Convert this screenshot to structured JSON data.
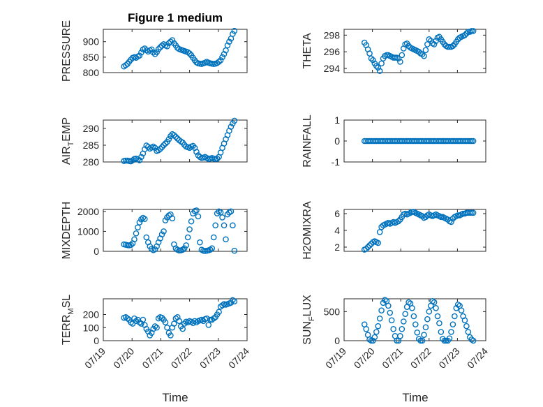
{
  "figure": {
    "title": "Figure 1 medium"
  },
  "colors": {
    "series": "#0072bd",
    "frame": "#262626",
    "grid": "#d9d9d9"
  },
  "chart_data": [
    {
      "type": "scatter",
      "ylabel": "PRESSURE",
      "ylabel_sub": "",
      "ylabel_tail": "",
      "ylim": [
        800,
        940
      ],
      "yticks": [
        800,
        850,
        900
      ],
      "x": [
        0.72,
        0.78,
        0.84,
        0.9,
        0.96,
        1.02,
        1.08,
        1.14,
        1.2,
        1.26,
        1.32,
        1.38,
        1.44,
        1.5,
        1.56,
        1.62,
        1.68,
        1.74,
        1.8,
        1.86,
        1.92,
        1.98,
        2.04,
        2.1,
        2.16,
        2.22,
        2.28,
        2.34,
        2.4,
        2.46,
        2.52,
        2.58,
        2.64,
        2.7,
        2.76,
        2.82,
        2.88,
        2.94,
        3.0,
        3.06,
        3.12,
        3.18,
        3.24,
        3.3,
        3.36,
        3.42,
        3.48,
        3.54,
        3.6,
        3.66,
        3.72,
        3.78,
        3.84,
        3.9,
        3.96,
        4.02,
        4.08,
        4.14,
        4.2,
        4.26,
        4.32,
        4.38,
        4.44,
        4.5,
        4.56
      ],
      "y": [
        820,
        824,
        828,
        835,
        842,
        848,
        850,
        848,
        852,
        855,
        865,
        875,
        878,
        872,
        868,
        872,
        875,
        865,
        860,
        866,
        876,
        882,
        887,
        892,
        888,
        885,
        895,
        900,
        905,
        895,
        888,
        880,
        876,
        874,
        872,
        870,
        868,
        866,
        862,
        856,
        848,
        840,
        833,
        830,
        829,
        828,
        830,
        832,
        835,
        832,
        830,
        829,
        828,
        829,
        831,
        835,
        840,
        850,
        860,
        872,
        888,
        900,
        910,
        925,
        935
      ],
      "markers": true
    },
    {
      "type": "scatter",
      "ylabel": "THETA",
      "ylabel_sub": "",
      "ylabel_tail": "",
      "ylim": [
        293.5,
        298.7
      ],
      "yticks": [
        294,
        296,
        298
      ],
      "x": [
        0.72,
        0.78,
        0.84,
        0.9,
        0.96,
        1.02,
        1.08,
        1.14,
        1.2,
        1.26,
        1.32,
        1.38,
        1.44,
        1.5,
        1.56,
        1.62,
        1.68,
        1.74,
        1.8,
        1.86,
        1.92,
        1.98,
        2.04,
        2.1,
        2.16,
        2.22,
        2.28,
        2.34,
        2.4,
        2.46,
        2.52,
        2.58,
        2.64,
        2.7,
        2.76,
        2.82,
        2.88,
        2.94,
        3.0,
        3.06,
        3.12,
        3.18,
        3.24,
        3.3,
        3.36,
        3.42,
        3.48,
        3.54,
        3.6,
        3.66,
        3.72,
        3.78,
        3.84,
        3.9,
        3.96,
        4.02,
        4.08,
        4.14,
        4.2,
        4.26,
        4.32,
        4.38,
        4.44,
        4.5,
        4.56
      ],
      "y": [
        297.1,
        296.8,
        296.3,
        295.8,
        295.2,
        295.0,
        294.6,
        294.3,
        294.1,
        293.7,
        294.6,
        295.2,
        295.5,
        295.6,
        295.6,
        295.5,
        295.4,
        295.3,
        295.3,
        295.3,
        295.2,
        294.8,
        295.6,
        296.4,
        296.9,
        297.0,
        296.7,
        296.5,
        296.4,
        296.3,
        296.2,
        296.1,
        296.0,
        295.8,
        295.7,
        295.5,
        296.2,
        296.9,
        297.5,
        297.3,
        297.0,
        296.9,
        297.3,
        297.7,
        297.8,
        297.5,
        297.2,
        296.9,
        296.7,
        296.6,
        296.6,
        296.6,
        296.7,
        296.9,
        297.2,
        297.5,
        297.7,
        297.8,
        297.9,
        298.0,
        298.2,
        298.4,
        298.4,
        298.5,
        298.5
      ],
      "markers": true
    },
    {
      "type": "scatter",
      "ylabel": "AIR",
      "ylabel_sub": "T",
      "ylabel_tail": "EMP",
      "ylim": [
        280,
        292.5
      ],
      "yticks": [
        280,
        285,
        290
      ],
      "x": [
        0.72,
        0.78,
        0.84,
        0.9,
        0.96,
        1.02,
        1.08,
        1.14,
        1.2,
        1.26,
        1.32,
        1.38,
        1.44,
        1.5,
        1.56,
        1.62,
        1.68,
        1.74,
        1.8,
        1.86,
        1.92,
        1.98,
        2.04,
        2.1,
        2.16,
        2.22,
        2.28,
        2.34,
        2.4,
        2.46,
        2.52,
        2.58,
        2.64,
        2.7,
        2.76,
        2.82,
        2.88,
        2.94,
        3.0,
        3.06,
        3.12,
        3.18,
        3.24,
        3.3,
        3.36,
        3.42,
        3.48,
        3.54,
        3.6,
        3.66,
        3.72,
        3.78,
        3.84,
        3.9,
        3.96,
        4.02,
        4.08,
        4.14,
        4.2,
        4.26,
        4.32,
        4.38,
        4.44,
        4.5,
        4.56
      ],
      "y": [
        280.3,
        280.4,
        280.4,
        280.3,
        280.2,
        280.5,
        280.9,
        281.0,
        280.8,
        280.5,
        281.5,
        282.5,
        283.8,
        284.9,
        284.5,
        284.0,
        284.3,
        284.6,
        284.2,
        283.3,
        283.5,
        283.9,
        284.4,
        285.0,
        285.5,
        286.0,
        286.8,
        287.7,
        288.3,
        288.0,
        287.5,
        287.0,
        286.5,
        286.1,
        285.8,
        285.1,
        284.6,
        284.4,
        284.2,
        284.6,
        284.8,
        284.2,
        283.0,
        282.0,
        281.5,
        281.2,
        281.3,
        281.5,
        281.2,
        280.9,
        281.0,
        281.2,
        281.0,
        280.9,
        281.0,
        281.5,
        282.8,
        284.2,
        285.5,
        286.8,
        288.0,
        289.3,
        290.5,
        291.5,
        292.3
      ],
      "markers": true
    },
    {
      "type": "scatter",
      "ylabel": "RAINFALL",
      "ylabel_sub": "",
      "ylabel_tail": "",
      "ylim": [
        -1,
        1
      ],
      "yticks": [
        -1,
        0,
        1
      ],
      "x": [
        0.72,
        0.78,
        0.84,
        0.9,
        0.96,
        1.02,
        1.08,
        1.14,
        1.2,
        1.26,
        1.32,
        1.38,
        1.44,
        1.5,
        1.56,
        1.62,
        1.68,
        1.74,
        1.8,
        1.86,
        1.92,
        1.98,
        2.04,
        2.1,
        2.16,
        2.22,
        2.28,
        2.34,
        2.4,
        2.46,
        2.52,
        2.58,
        2.64,
        2.7,
        2.76,
        2.82,
        2.88,
        2.94,
        3.0,
        3.06,
        3.12,
        3.18,
        3.24,
        3.3,
        3.36,
        3.42,
        3.48,
        3.54,
        3.6,
        3.66,
        3.72,
        3.78,
        3.84,
        3.9,
        3.96,
        4.02,
        4.08,
        4.14,
        4.2,
        4.26,
        4.32,
        4.38,
        4.44,
        4.5,
        4.56
      ],
      "y": [
        0,
        0,
        0,
        0,
        0,
        0,
        0,
        0,
        0,
        0,
        0,
        0,
        0,
        0,
        0,
        0,
        0,
        0,
        0,
        0,
        0,
        0,
        0,
        0,
        0,
        0,
        0,
        0,
        0,
        0,
        0,
        0,
        0,
        0,
        0,
        0,
        0,
        0,
        0,
        0,
        0,
        0,
        0,
        0,
        0,
        0,
        0,
        0,
        0,
        0,
        0,
        0,
        0,
        0,
        0,
        0,
        0,
        0,
        0,
        0,
        0,
        0,
        0,
        0,
        0
      ],
      "markers": true
    },
    {
      "type": "scatter",
      "ylabel": "MIXDEPTH",
      "ylabel_sub": "",
      "ylabel_tail": "",
      "ylim": [
        0,
        2100
      ],
      "yticks": [
        0,
        1000,
        2000
      ],
      "x": [
        0.72,
        0.78,
        0.84,
        0.9,
        0.96,
        1.02,
        1.08,
        1.14,
        1.2,
        1.26,
        1.32,
        1.38,
        1.44,
        1.5,
        1.56,
        1.62,
        1.68,
        1.74,
        1.8,
        1.86,
        1.92,
        1.98,
        2.04,
        2.1,
        2.16,
        2.22,
        2.28,
        2.34,
        2.4,
        2.46,
        2.52,
        2.58,
        2.64,
        2.7,
        2.76,
        2.82,
        2.88,
        2.94,
        3.0,
        3.06,
        3.12,
        3.18,
        3.24,
        3.3,
        3.36,
        3.42,
        3.48,
        3.54,
        3.6,
        3.66,
        3.72,
        3.78,
        3.84,
        3.9,
        3.96,
        4.02,
        4.08,
        4.14,
        4.2,
        4.26,
        4.32,
        4.38,
        4.44,
        4.5,
        4.56
      ],
      "y": [
        350,
        330,
        310,
        300,
        320,
        400,
        600,
        900,
        1200,
        1450,
        1600,
        1680,
        1620,
        700,
        450,
        250,
        120,
        60,
        100,
        250,
        450,
        650,
        850,
        1000,
        1550,
        1700,
        1800,
        1850,
        1650,
        350,
        150,
        80,
        40,
        50,
        80,
        150,
        300,
        700,
        1100,
        1500,
        1900,
        2020,
        2050,
        1750,
        450,
        80,
        30,
        20,
        30,
        50,
        80,
        150,
        700,
        1300,
        1900,
        2000,
        1950,
        1700,
        1300,
        600,
        1850,
        1950,
        2000,
        1300,
        30
      ],
      "markers": true
    },
    {
      "type": "scatter",
      "ylabel": "H2OMIXRA",
      "ylabel_sub": "",
      "ylabel_tail": "",
      "ylim": [
        1.5,
        6.5
      ],
      "yticks": [
        2,
        4,
        6
      ],
      "x": [
        0.72,
        0.78,
        0.84,
        0.9,
        0.96,
        1.02,
        1.08,
        1.14,
        1.2,
        1.26,
        1.32,
        1.38,
        1.44,
        1.5,
        1.56,
        1.62,
        1.68,
        1.74,
        1.8,
        1.86,
        1.92,
        1.98,
        2.04,
        2.1,
        2.16,
        2.22,
        2.28,
        2.34,
        2.4,
        2.46,
        2.52,
        2.58,
        2.64,
        2.7,
        2.76,
        2.82,
        2.88,
        2.94,
        3.0,
        3.06,
        3.12,
        3.18,
        3.24,
        3.3,
        3.36,
        3.42,
        3.48,
        3.54,
        3.6,
        3.66,
        3.72,
        3.78,
        3.84,
        3.9,
        3.96,
        4.02,
        4.08,
        4.14,
        4.2,
        4.26,
        4.32,
        4.38,
        4.44,
        4.5,
        4.56
      ],
      "y": [
        1.7,
        1.8,
        2.0,
        2.2,
        2.4,
        2.6,
        2.7,
        2.6,
        2.5,
        3.8,
        4.4,
        4.6,
        4.7,
        4.8,
        4.9,
        4.8,
        4.9,
        5.0,
        4.9,
        5.0,
        5.1,
        5.3,
        5.6,
        5.9,
        6.0,
        5.9,
        6.0,
        6.1,
        6.2,
        6.2,
        6.1,
        6.0,
        5.9,
        5.8,
        5.7,
        5.5,
        5.6,
        5.8,
        5.9,
        5.8,
        5.7,
        5.8,
        5.9,
        5.8,
        5.7,
        5.6,
        5.6,
        5.5,
        5.4,
        5.3,
        5.1,
        5.0,
        5.4,
        5.6,
        5.7,
        5.8,
        5.8,
        5.9,
        6.0,
        6.0,
        6.1,
        6.1,
        6.1,
        6.1,
        6.1
      ],
      "markers": true
    },
    {
      "type": "scatter",
      "ylabel": "TERR",
      "ylabel_sub": "M",
      "ylabel_tail": "SL",
      "ylim": [
        0,
        320
      ],
      "yticks": [
        0,
        100,
        200
      ],
      "x": [
        0.72,
        0.78,
        0.84,
        0.9,
        0.96,
        1.02,
        1.08,
        1.14,
        1.2,
        1.26,
        1.32,
        1.38,
        1.44,
        1.5,
        1.56,
        1.62,
        1.68,
        1.74,
        1.8,
        1.86,
        1.92,
        1.98,
        2.04,
        2.1,
        2.16,
        2.22,
        2.28,
        2.34,
        2.4,
        2.46,
        2.52,
        2.58,
        2.64,
        2.7,
        2.76,
        2.82,
        2.88,
        2.94,
        3.0,
        3.06,
        3.12,
        3.18,
        3.24,
        3.3,
        3.36,
        3.42,
        3.48,
        3.54,
        3.6,
        3.66,
        3.72,
        3.78,
        3.84,
        3.9,
        3.96,
        4.02,
        4.08,
        4.14,
        4.2,
        4.26,
        4.32,
        4.38,
        4.44,
        4.5,
        4.56
      ],
      "y": [
        175,
        180,
        170,
        160,
        140,
        130,
        170,
        150,
        160,
        140,
        130,
        160,
        120,
        90,
        70,
        40,
        60,
        90,
        110,
        100,
        170,
        180,
        175,
        160,
        140,
        100,
        60,
        40,
        100,
        130,
        170,
        180,
        150,
        110,
        90,
        130,
        145,
        140,
        150,
        145,
        135,
        150,
        140,
        150,
        155,
        160,
        150,
        165,
        170,
        120,
        160,
        160,
        170,
        180,
        200,
        220,
        260,
        270,
        280,
        275,
        280,
        285,
        290,
        310,
        300
      ],
      "markers": true
    },
    {
      "type": "scatter",
      "ylabel": "SUN",
      "ylabel_sub": "F",
      "ylabel_tail": "LUX",
      "ylim": [
        0,
        720
      ],
      "yticks": [
        0,
        500
      ],
      "x": [
        0.72,
        0.78,
        0.84,
        0.9,
        0.96,
        1.02,
        1.08,
        1.14,
        1.2,
        1.26,
        1.32,
        1.38,
        1.44,
        1.5,
        1.56,
        1.62,
        1.68,
        1.74,
        1.8,
        1.86,
        1.92,
        1.98,
        2.04,
        2.1,
        2.16,
        2.22,
        2.28,
        2.34,
        2.4,
        2.46,
        2.52,
        2.58,
        2.64,
        2.7,
        2.76,
        2.82,
        2.88,
        2.94,
        3.0,
        3.06,
        3.12,
        3.18,
        3.24,
        3.3,
        3.36,
        3.42,
        3.48,
        3.54,
        3.6,
        3.66,
        3.72,
        3.78,
        3.84,
        3.9,
        3.96,
        4.02,
        4.08,
        4.14,
        4.2,
        4.26,
        4.32,
        4.38,
        4.44,
        4.5,
        4.56
      ],
      "y": [
        280,
        200,
        100,
        20,
        0,
        0,
        60,
        150,
        250,
        380,
        520,
        650,
        700,
        680,
        600,
        480,
        350,
        200,
        80,
        0,
        0,
        80,
        200,
        330,
        460,
        580,
        660,
        640,
        560,
        420,
        280,
        140,
        30,
        0,
        0,
        100,
        230,
        370,
        500,
        600,
        680,
        660,
        560,
        420,
        300,
        150,
        30,
        0,
        0,
        0,
        40,
        150,
        280,
        420,
        560,
        620,
        600,
        520,
        420,
        350,
        250,
        150,
        60,
        20,
        0
      ],
      "markers": true
    }
  ],
  "x_axis": {
    "ticks": [
      0,
      1,
      2,
      3,
      4,
      5
    ],
    "tick_labels": [
      "07/19",
      "07/20",
      "07/21",
      "07/22",
      "07/23",
      "07/24"
    ],
    "xlim": [
      0,
      5
    ],
    "xlabel": "Time"
  }
}
